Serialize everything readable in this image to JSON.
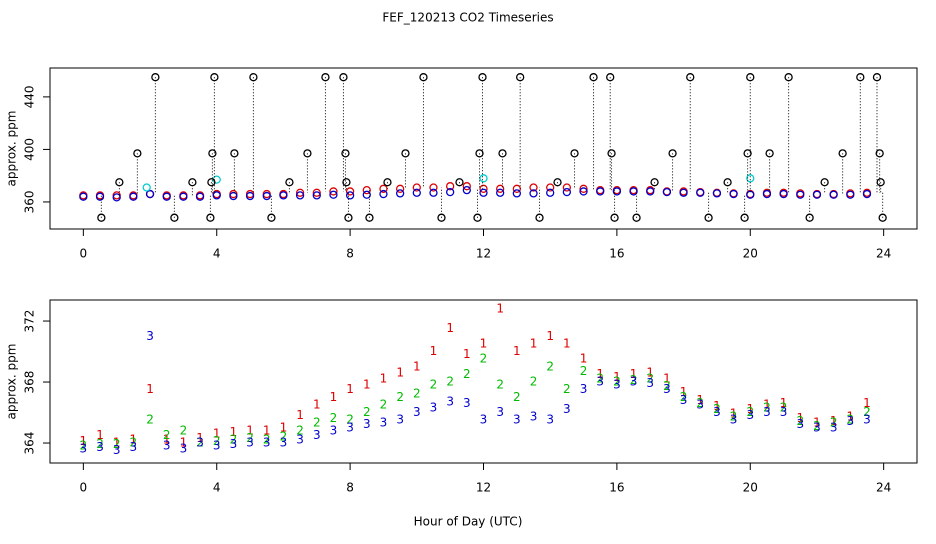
{
  "chart_data": [
    {
      "type": "scatter",
      "title": "FEF_120213  CO2 Timeseries",
      "ylabel": "approx. ppm",
      "xlim": [
        -1,
        25
      ],
      "ylim": [
        339.4,
        462
      ],
      "xticks": [
        0,
        4,
        8,
        12,
        16,
        20,
        24
      ],
      "yticks": [
        360,
        400,
        440
      ],
      "x": [
        0,
        0.5,
        1,
        1.5,
        2,
        2.5,
        3,
        3.5,
        4,
        4.5,
        5,
        5.5,
        6,
        6.5,
        7,
        7.5,
        8,
        8.5,
        9,
        9.5,
        10,
        10.5,
        11,
        11.5,
        12,
        12.5,
        13,
        13.5,
        14,
        14.5,
        15,
        15.5,
        16,
        16.5,
        17,
        17.5,
        18,
        18.5,
        19,
        19.5,
        20,
        20.5,
        21,
        21.5,
        22,
        22.5,
        23,
        23.5
      ],
      "series": [
        {
          "color": "#dd0000",
          "marker": "circle",
          "values": [
            365,
            365,
            365,
            365,
            366,
            365,
            365,
            365,
            366,
            366,
            366,
            366,
            366,
            367,
            367,
            368,
            368,
            369,
            370,
            370,
            371,
            371,
            372,
            372,
            370,
            370,
            370,
            371,
            371,
            371,
            370,
            369,
            369,
            369,
            369,
            368,
            368,
            367.5,
            367,
            366.5,
            366,
            367,
            367,
            366.5,
            366,
            366,
            366.5,
            367
          ]
        },
        {
          "color": "#0000cc",
          "marker": "circle",
          "values": [
            364,
            364,
            363.5,
            364,
            366,
            364,
            364,
            364,
            365,
            364.5,
            364.5,
            364.5,
            365,
            365,
            365,
            365.5,
            365,
            365.5,
            366,
            366.5,
            367,
            367,
            367.5,
            369,
            367,
            367,
            366.5,
            366.5,
            367,
            367.5,
            368,
            368,
            368,
            368,
            368,
            367.5,
            367,
            367,
            366.5,
            366,
            365.5,
            366,
            366,
            365.5,
            365.5,
            365.5,
            365.5,
            366
          ]
        },
        {
          "color": "#00cccc",
          "marker": "circle",
          "x": [
            1.9,
            4.0,
            12.0,
            20.0
          ],
          "values": [
            371,
            377,
            378,
            378
          ]
        },
        {
          "color": "#000000",
          "marker": "circle",
          "drop_lines": true,
          "x": [
            2.16,
            3.93,
            5.1,
            7.26,
            7.8,
            10.2,
            11.97,
            13.1,
            15.3,
            15.8,
            18.2,
            20.0,
            21.15,
            23.3,
            23.8,
            1.62,
            3.87,
            4.53,
            6.72,
            7.86,
            9.66,
            11.88,
            12.57,
            14.73,
            15.84,
            17.67,
            19.92,
            20.58,
            22.77,
            23.88,
            1.08,
            3.27,
            3.84,
            6.18,
            7.89,
            9.12,
            11.28,
            14.22,
            17.13,
            19.32,
            22.23,
            23.91,
            0.54,
            2.73,
            3.81,
            5.64,
            7.95,
            8.58,
            10.74,
            11.82,
            13.68,
            15.93,
            16.59,
            18.75,
            19.83,
            21.78,
            23.97
          ],
          "values": [
            455,
            455,
            455,
            455,
            455,
            455,
            455,
            455,
            455,
            455,
            455,
            455,
            455,
            455,
            455,
            397,
            397,
            397,
            397,
            397,
            397,
            397,
            397,
            397,
            397,
            397,
            397,
            397,
            397,
            397,
            375,
            375,
            375,
            375,
            375,
            375,
            375,
            375,
            375,
            375,
            375,
            375,
            348,
            348,
            348,
            348,
            348,
            348,
            348,
            348,
            348,
            348,
            348,
            348,
            348,
            348,
            348
          ]
        }
      ]
    },
    {
      "type": "scatter",
      "ylabel": "approx. ppm",
      "xlabel": "Hour of Day (UTC)",
      "xlim": [
        -1,
        25
      ],
      "ylim": [
        362.69,
        373.38
      ],
      "xticks": [
        0,
        4,
        8,
        12,
        16,
        20,
        24
      ],
      "yticks": [
        364,
        368,
        372
      ],
      "x": [
        0,
        0.5,
        1,
        1.5,
        2,
        2.5,
        3,
        3.5,
        4,
        4.5,
        5,
        5.5,
        6,
        6.5,
        7,
        7.5,
        8,
        8.5,
        9,
        9.5,
        10,
        10.5,
        11,
        11.5,
        12,
        12.5,
        13,
        13.5,
        14,
        14.5,
        15,
        15.5,
        16,
        16.5,
        17,
        17.5,
        18,
        18.5,
        19,
        19.5,
        20,
        20.5,
        21,
        21.5,
        22,
        22.5,
        23,
        23.5
      ],
      "series": [
        {
          "color": "#dd0000",
          "marker": "1",
          "values": [
            364.1,
            364.5,
            364.0,
            364.2,
            367.5,
            364.2,
            364.0,
            364.3,
            364.6,
            364.7,
            364.8,
            364.8,
            365.0,
            365.8,
            366.5,
            367.0,
            367.5,
            367.8,
            368.2,
            368.6,
            369.0,
            370.0,
            371.5,
            369.8,
            370.5,
            372.8,
            370.0,
            370.5,
            371.0,
            370.5,
            369.5,
            368.5,
            368.3,
            368.5,
            368.6,
            368.2,
            367.3,
            366.8,
            366.4,
            365.9,
            366.2,
            366.5,
            366.6,
            365.6,
            365.3,
            365.4,
            365.7,
            366.6
          ]
        },
        {
          "color": "#00bb00",
          "marker": "2",
          "values": [
            363.8,
            363.9,
            363.9,
            364.0,
            365.5,
            364.5,
            364.8,
            364.0,
            364.1,
            364.2,
            364.3,
            364.2,
            364.4,
            364.8,
            365.3,
            365.6,
            365.5,
            366.0,
            366.5,
            367.0,
            367.2,
            367.8,
            368.0,
            368.5,
            369.5,
            367.8,
            367.0,
            368.0,
            369.0,
            367.5,
            368.7,
            368.2,
            368.0,
            368.1,
            368.2,
            367.7,
            367.0,
            366.6,
            366.2,
            365.7,
            366.0,
            366.3,
            366.3,
            365.4,
            365.1,
            365.3,
            365.5,
            366.0
          ]
        },
        {
          "color": "#0000cc",
          "marker": "3",
          "values": [
            363.6,
            363.7,
            363.5,
            363.7,
            371.0,
            363.8,
            363.6,
            364.0,
            363.8,
            363.9,
            364.0,
            364.0,
            364.0,
            364.2,
            364.5,
            364.8,
            365.0,
            365.2,
            365.3,
            365.5,
            366.0,
            366.3,
            366.7,
            366.6,
            365.5,
            366.0,
            365.5,
            365.7,
            365.5,
            366.2,
            367.5,
            368.0,
            367.8,
            368.0,
            367.9,
            367.5,
            366.8,
            366.5,
            366.0,
            365.5,
            365.8,
            366.0,
            366.0,
            365.2,
            365.0,
            365.0,
            365.4,
            365.5
          ]
        }
      ]
    }
  ]
}
